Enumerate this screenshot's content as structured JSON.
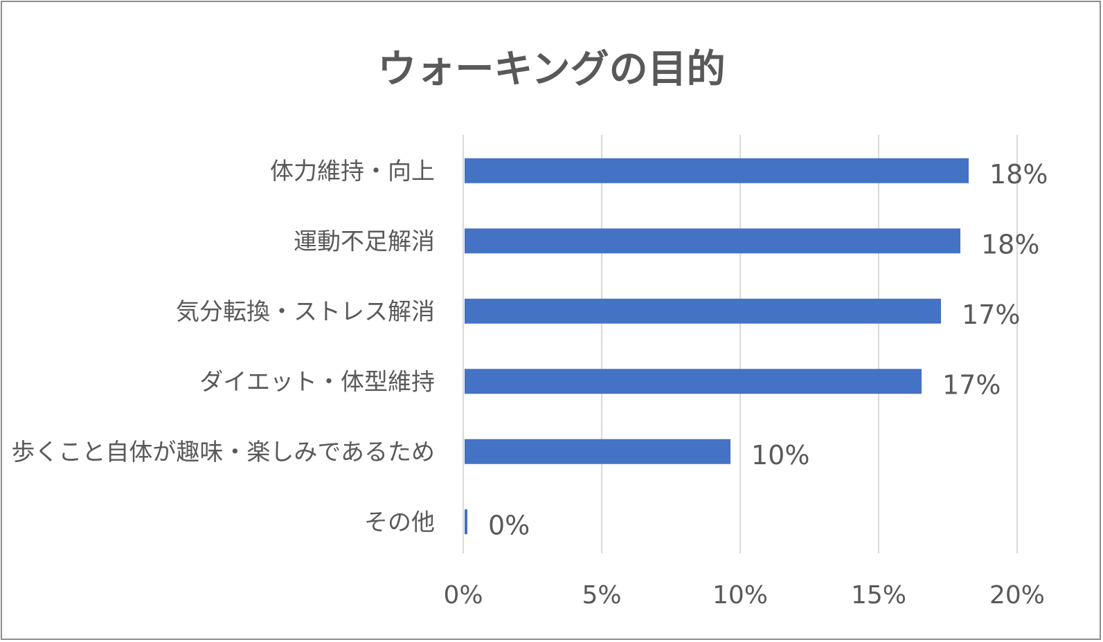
{
  "chart_data": {
    "type": "bar",
    "orientation": "horizontal",
    "title": "ウォーキングの目的",
    "categories": [
      "体力維持・向上",
      "運動不足解消",
      "気分転換・ストレス解消",
      "ダイエット・体型維持",
      "歩くこと自体が趣味・楽しみであるため",
      "その他"
    ],
    "values": [
      18.2,
      17.9,
      17.2,
      16.5,
      9.6,
      0.1
    ],
    "data_labels": [
      "18%",
      "18%",
      "17%",
      "17%",
      "10%",
      "0%"
    ],
    "xlim": [
      0,
      20
    ],
    "x_ticks": [
      0,
      5,
      10,
      15,
      20
    ],
    "x_tick_labels": [
      "0%",
      "5%",
      "10%",
      "15%",
      "20%"
    ],
    "grid": true,
    "legend": "none",
    "colors": {
      "bar": "#4472c4",
      "grid": "#d9d9d9",
      "text": "#595959",
      "title": "#595959",
      "border": "#8c8c8c"
    }
  }
}
